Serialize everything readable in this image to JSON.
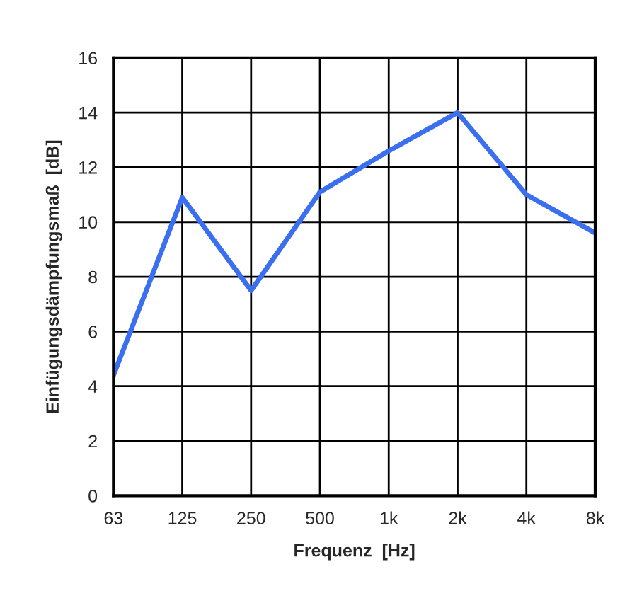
{
  "chart_data": {
    "type": "line",
    "xlabel": "Frequenz  [Hz]",
    "ylabel": "Einfügungsdämpfungsmaß  [dB]",
    "categories": [
      "63",
      "125",
      "250",
      "500",
      "1k",
      "2k",
      "4k",
      "8k"
    ],
    "series": [
      {
        "color": "#3a6ff0",
        "values": [
          4.4,
          10.9,
          7.5,
          11.1,
          12.6,
          14.0,
          11.0,
          9.6
        ]
      }
    ],
    "ylim": [
      0,
      16
    ],
    "yticks": [
      0,
      2,
      4,
      6,
      8,
      10,
      12,
      14,
      16
    ],
    "grid": true,
    "marker": "none",
    "line_style": "solid"
  }
}
